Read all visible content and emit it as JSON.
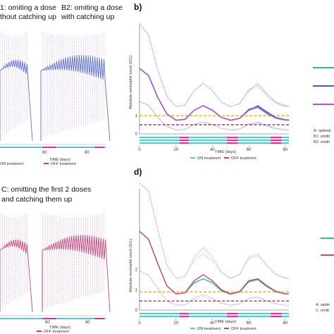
{
  "panels": {
    "a_right_label": "B2: omiting a dose",
    "a_right_label2": "with catching up",
    "a_left_label": "1: omiting a dose",
    "a_left_label2": "thout catching up",
    "a_xlabel": "TIME (days)",
    "a_legend_on": "ON treatment",
    "a_legend_off": "OFF treatment",
    "b_letter": "b)",
    "b_ylabel": "Absolute neutrophil count (G/L)",
    "b_xlabel": "TIME (days)",
    "b_legend_on": "ON treatment",
    "b_legend_off": "OFF treatment",
    "b_series_labels": [
      "A: optimal",
      "B1: omitti",
      "B2: omitti"
    ],
    "c_label": "C: omitting the first 2 doses",
    "c_label2": "and catching them up",
    "c_xlabel": "TIME (days)",
    "c_legend_off": "OFF treatment",
    "d_letter": "d)",
    "d_ylabel": "Absolute neutrophil count (G/L)",
    "d_xlabel": "TIME (days)",
    "d_legend_on": "ON treatment",
    "d_legend_off": "OFF treatment",
    "d_series_labels": [
      "A: optim",
      "C: omitt"
    ]
  },
  "colors": {
    "green": "#2fbf8f",
    "blue": "#3f5fbf",
    "purple": "#b34fd0",
    "pink": "#c9467c",
    "orange": "#f5a623",
    "darkred": "#b0224a",
    "teal": "#5cc8c8",
    "magenta": "#e0309a"
  },
  "chart_data": [
    {
      "type": "line",
      "panel": "b",
      "x": [
        0,
        5,
        10,
        15,
        20,
        25,
        30,
        35,
        40,
        45,
        50,
        55,
        60,
        65,
        70,
        75,
        80,
        82
      ],
      "series": [
        {
          "color": "green",
          "values": [
            3.6,
            3.2,
            2.0,
            1.1,
            0.75,
            0.8,
            1.3,
            1.55,
            1.3,
            0.9,
            0.75,
            0.85,
            1.3,
            1.45,
            1.1,
            0.85,
            0.75,
            0.75
          ]
        },
        {
          "color": "blue",
          "values": [
            3.6,
            3.2,
            2.0,
            1.1,
            0.75,
            0.8,
            1.3,
            1.55,
            1.3,
            0.9,
            0.75,
            0.85,
            1.3,
            1.55,
            1.2,
            0.9,
            0.78,
            0.77
          ]
        },
        {
          "color": "purple",
          "values": [
            3.6,
            3.2,
            2.0,
            1.1,
            0.75,
            0.8,
            1.3,
            1.55,
            1.3,
            0.9,
            0.75,
            0.85,
            1.35,
            1.5,
            1.15,
            0.88,
            0.77,
            0.76
          ]
        }
      ],
      "xlim": [
        0,
        82
      ],
      "xticks": [
        0,
        20,
        40,
        60,
        80
      ],
      "ylim": [
        0,
        6
      ],
      "yticks": [
        0,
        1
      ],
      "hlines": [
        {
          "y": 1.0,
          "color": "orange"
        },
        {
          "y": 0.5,
          "color": "darkred"
        }
      ],
      "off_treatment_days": [
        [
          22,
          27
        ],
        [
          48,
          54
        ],
        [
          72,
          78
        ]
      ]
    },
    {
      "type": "line",
      "panel": "d",
      "x": [
        0,
        5,
        10,
        15,
        20,
        25,
        30,
        35,
        40,
        45,
        50,
        55,
        60,
        65,
        70,
        75,
        80,
        82
      ],
      "series": [
        {
          "color": "green",
          "values": [
            3.9,
            3.5,
            2.3,
            1.2,
            0.8,
            0.85,
            1.35,
            1.55,
            1.35,
            0.95,
            0.78,
            0.9,
            1.4,
            1.5,
            1.15,
            0.9,
            0.8,
            0.8
          ]
        },
        {
          "color": "pink",
          "values": [
            3.9,
            3.5,
            2.3,
            1.2,
            0.8,
            0.85,
            1.45,
            1.75,
            1.45,
            1.0,
            0.8,
            0.92,
            1.45,
            1.55,
            1.2,
            0.92,
            0.8,
            0.8
          ]
        }
      ],
      "xlim": [
        0,
        82
      ],
      "xticks": [
        0,
        20,
        40,
        60,
        80
      ],
      "ylim": [
        0,
        6
      ],
      "yticks": [
        0,
        1,
        2
      ],
      "hlines": [
        {
          "y": 0.9,
          "color": "orange"
        },
        {
          "y": 0.45,
          "color": "darkred"
        }
      ],
      "off_treatment_days": [
        [
          22,
          27
        ],
        [
          48,
          54
        ],
        [
          72,
          78
        ]
      ]
    }
  ]
}
